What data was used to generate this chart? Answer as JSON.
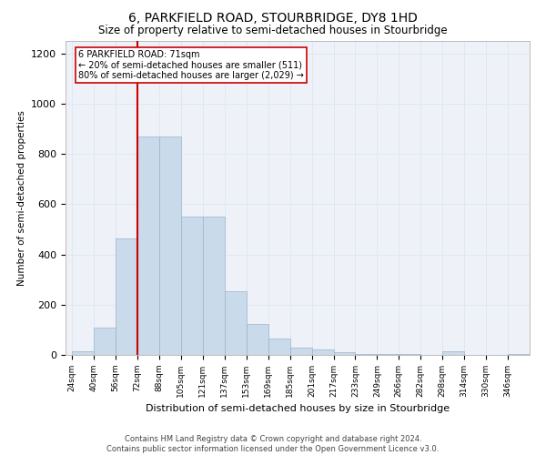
{
  "title": "6, PARKFIELD ROAD, STOURBRIDGE, DY8 1HD",
  "subtitle": "Size of property relative to semi-detached houses in Stourbridge",
  "xlabel": "Distribution of semi-detached houses by size in Stourbridge",
  "ylabel": "Number of semi-detached properties",
  "bar_values": [
    15,
    110,
    465,
    870,
    870,
    550,
    550,
    255,
    125,
    65,
    30,
    20,
    10,
    5,
    3,
    2,
    1,
    15,
    0,
    0,
    5
  ],
  "bin_labels": [
    "24sqm",
    "40sqm",
    "56sqm",
    "72sqm",
    "88sqm",
    "105sqm",
    "121sqm",
    "137sqm",
    "153sqm",
    "169sqm",
    "185sqm",
    "201sqm",
    "217sqm",
    "233sqm",
    "249sqm",
    "266sqm",
    "282sqm",
    "298sqm",
    "314sqm",
    "330sqm",
    "346sqm"
  ],
  "n_bins": 21,
  "property_size_bin": 3,
  "property_label": "6 PARKFIELD ROAD: 71sqm",
  "smaller_pct": 20,
  "smaller_n": 511,
  "larger_pct": 80,
  "larger_n": "2,029",
  "bar_color": "#c9daea",
  "bar_edge_color": "#9ab4cc",
  "vline_color": "#cc0000",
  "annotation_box_color": "#cc0000",
  "ylim": [
    0,
    1250
  ],
  "yticks": [
    0,
    200,
    400,
    600,
    800,
    1000,
    1200
  ],
  "grid_color": "#dce8f0",
  "bg_color": "#eef2f8",
  "footnote": "Contains HM Land Registry data © Crown copyright and database right 2024.\nContains public sector information licensed under the Open Government Licence v3.0."
}
